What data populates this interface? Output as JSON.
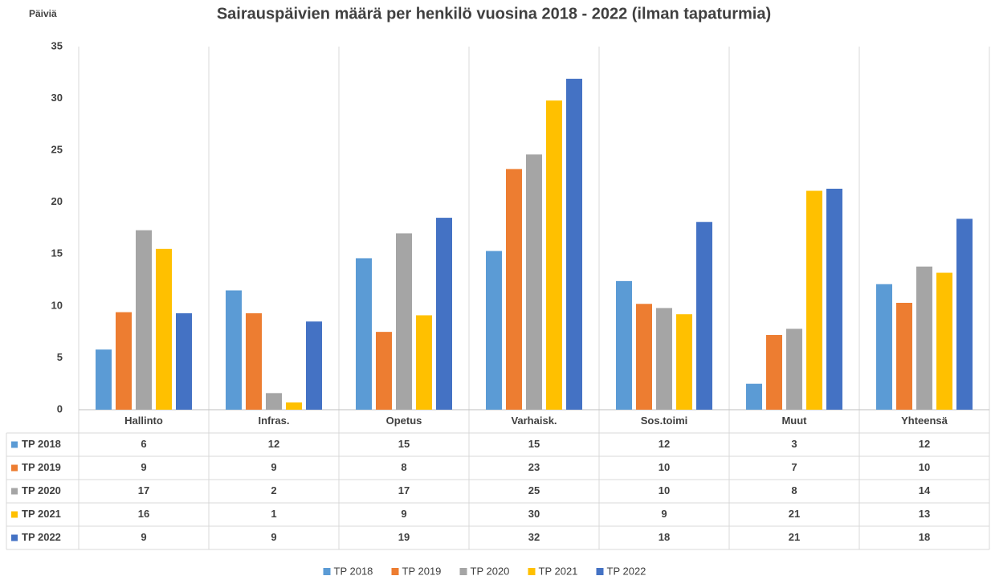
{
  "chart_data": {
    "type": "bar",
    "title": "Sairauspäivien määrä per henkilö vuosina 2018 - 2022 (ilman tapaturmia)",
    "y_label": "Päiviä",
    "categories": [
      "Hallinto",
      "Infras.",
      "Opetus",
      "Varhaisk.",
      "Sos.toimi",
      "Muut",
      "Yhteensä"
    ],
    "series": [
      {
        "name": "TP 2018",
        "color": "#5b9bd5",
        "values": [
          5.8,
          11.5,
          14.6,
          15.3,
          12.4,
          2.5,
          12.1
        ],
        "value_labels": [
          "6",
          "12",
          "15",
          "15",
          "12",
          "3",
          "12"
        ]
      },
      {
        "name": "TP 2019",
        "color": "#ed7d31",
        "values": [
          9.4,
          9.3,
          7.5,
          23.2,
          10.2,
          7.2,
          10.3
        ],
        "value_labels": [
          "9",
          "9",
          "8",
          "23",
          "10",
          "7",
          "10"
        ]
      },
      {
        "name": "TP 2020",
        "color": "#a5a5a5",
        "values": [
          17.3,
          1.6,
          17.0,
          24.6,
          9.8,
          7.8,
          13.8
        ],
        "value_labels": [
          "17",
          "2",
          "17",
          "25",
          "10",
          "8",
          "14"
        ]
      },
      {
        "name": "TP 2021",
        "color": "#ffc000",
        "values": [
          15.5,
          0.7,
          9.1,
          29.8,
          9.2,
          21.1,
          13.2
        ],
        "value_labels": [
          "16",
          "1",
          "9",
          "30",
          "9",
          "21",
          "13"
        ]
      },
      {
        "name": "TP 2022",
        "color": "#4472c4",
        "values": [
          9.3,
          8.5,
          18.5,
          31.9,
          18.1,
          21.3,
          18.4
        ],
        "value_labels": [
          "9",
          "9",
          "19",
          "32",
          "18",
          "21",
          "18"
        ]
      }
    ],
    "ylim": [
      0,
      35
    ],
    "yticks": [
      0,
      5,
      10,
      15,
      20,
      25,
      30,
      35
    ],
    "legend": "bottom"
  }
}
